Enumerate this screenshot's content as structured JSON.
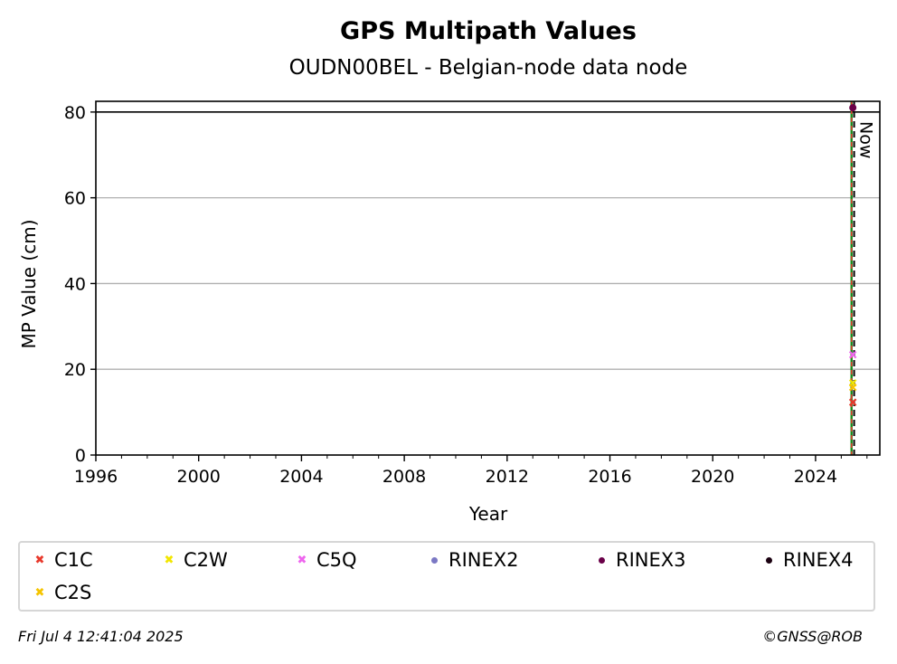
{
  "chart_data": {
    "type": "scatter",
    "title": "GPS Multipath Values",
    "subtitle": "OUDN00BEL - Belgian-node data node",
    "xlabel": "Year",
    "ylabel": "MP Value (cm)",
    "xlim": [
      1996,
      2026.5
    ],
    "ylim": [
      0,
      82.5
    ],
    "x_ticks": [
      1996,
      2000,
      2004,
      2008,
      2012,
      2016,
      2020,
      2024
    ],
    "y_ticks": [
      0,
      20,
      40,
      60,
      80
    ],
    "grid": "horizontal",
    "reference_line_y": 80,
    "now_label": "Now",
    "now_x": 2025.5,
    "rinex3_start_x": 2025.4,
    "legend_placement": "below",
    "series": [
      {
        "name": "C1C",
        "marker": "x",
        "color": "#e8392c",
        "points": [
          [
            2025.45,
            12.3
          ]
        ]
      },
      {
        "name": "C2W",
        "marker": "x",
        "color": "#f2e600",
        "points": [
          [
            2025.45,
            16.8
          ]
        ]
      },
      {
        "name": "C5Q",
        "marker": "x",
        "color": "#ee66ee",
        "points": [
          [
            2025.45,
            23.4
          ]
        ]
      },
      {
        "name": "RINEX2",
        "marker": "o",
        "color": "#7b78c4",
        "points": []
      },
      {
        "name": "RINEX3",
        "marker": "o",
        "color": "#6a0048",
        "points": [
          [
            2025.45,
            81.0
          ]
        ]
      },
      {
        "name": "RINEX4",
        "marker": "o",
        "color": "#1a0010",
        "points": []
      },
      {
        "name": "C2S",
        "marker": "x",
        "color": "#f5c400",
        "points": [
          [
            2025.45,
            15.8
          ]
        ]
      }
    ]
  },
  "footer": {
    "timestamp": "Fri Jul  4 12:41:04 2025",
    "credit": "©GNSS@ROB"
  }
}
